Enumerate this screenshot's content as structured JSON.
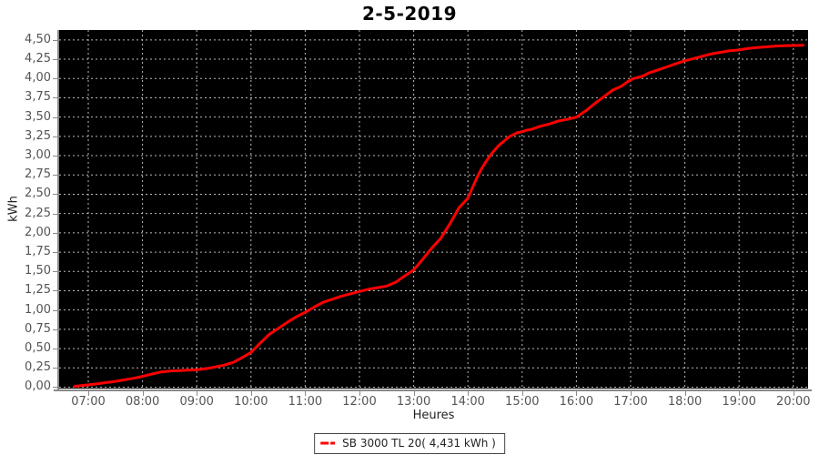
{
  "title": "2-5-2019",
  "colors": {
    "page_bg": "#ffffff",
    "plot_bg": "#000000",
    "grid_line": "#b9b9b9",
    "series_line": "#ff0000",
    "tick_label": "#555555",
    "axis_title": "#222222",
    "title_text": "#000000",
    "axis_line": "#8a8a8a",
    "legend_border": "#444444"
  },
  "chart_data": {
    "type": "line",
    "title": "2-5-2019",
    "xlabel": "Heures",
    "ylabel": "kWh",
    "grid": true,
    "legend_position": "bottom",
    "xlim": [
      6.463,
      20.272
    ],
    "ylim": [
      -0.018,
      4.628
    ],
    "x_ticks": [
      {
        "value": 7,
        "label": "07:00"
      },
      {
        "value": 8,
        "label": "08:00"
      },
      {
        "value": 9,
        "label": "09:00"
      },
      {
        "value": 10,
        "label": "10:00"
      },
      {
        "value": 11,
        "label": "11:00"
      },
      {
        "value": 12,
        "label": "12:00"
      },
      {
        "value": 13,
        "label": "13:00"
      },
      {
        "value": 14,
        "label": "14:00"
      },
      {
        "value": 15,
        "label": "15:00"
      },
      {
        "value": 16,
        "label": "16:00"
      },
      {
        "value": 17,
        "label": "17:00"
      },
      {
        "value": 18,
        "label": "18:00"
      },
      {
        "value": 19,
        "label": "19:00"
      },
      {
        "value": 20,
        "label": "20:00"
      }
    ],
    "y_ticks": [
      {
        "value": 0.0,
        "label": "0,00"
      },
      {
        "value": 0.25,
        "label": "0,25"
      },
      {
        "value": 0.5,
        "label": "0,50"
      },
      {
        "value": 0.75,
        "label": "0,75"
      },
      {
        "value": 1.0,
        "label": "1,00"
      },
      {
        "value": 1.25,
        "label": "1,25"
      },
      {
        "value": 1.5,
        "label": "1,50"
      },
      {
        "value": 1.75,
        "label": "1,75"
      },
      {
        "value": 2.0,
        "label": "2,00"
      },
      {
        "value": 2.25,
        "label": "2,25"
      },
      {
        "value": 2.5,
        "label": "2,50"
      },
      {
        "value": 2.75,
        "label": "2,75"
      },
      {
        "value": 3.0,
        "label": "3,00"
      },
      {
        "value": 3.25,
        "label": "3,25"
      },
      {
        "value": 3.5,
        "label": "3,50"
      },
      {
        "value": 3.75,
        "label": "3,75"
      },
      {
        "value": 4.0,
        "label": "4,00"
      },
      {
        "value": 4.25,
        "label": "4,25"
      },
      {
        "value": 4.5,
        "label": "4,50"
      }
    ],
    "legend": {
      "entries": [
        {
          "label": "SB 3000 TL 20( 4,431 kWh )",
          "color": "#ff0000",
          "marker": "dashed-line"
        }
      ]
    },
    "series": [
      {
        "name": "SB 3000 TL 20",
        "total_label": "4,431 kWh",
        "color": "#ff0000",
        "points": [
          [
            6.75,
            0.01
          ],
          [
            6.87,
            0.02
          ],
          [
            7.0,
            0.03
          ],
          [
            7.17,
            0.045
          ],
          [
            7.33,
            0.06
          ],
          [
            7.5,
            0.075
          ],
          [
            7.67,
            0.095
          ],
          [
            7.83,
            0.115
          ],
          [
            8.0,
            0.14
          ],
          [
            8.17,
            0.17
          ],
          [
            8.33,
            0.195
          ],
          [
            8.5,
            0.21
          ],
          [
            8.67,
            0.215
          ],
          [
            8.83,
            0.22
          ],
          [
            9.0,
            0.225
          ],
          [
            9.17,
            0.24
          ],
          [
            9.33,
            0.26
          ],
          [
            9.5,
            0.285
          ],
          [
            9.67,
            0.32
          ],
          [
            9.83,
            0.38
          ],
          [
            10.0,
            0.45
          ],
          [
            10.17,
            0.57
          ],
          [
            10.33,
            0.68
          ],
          [
            10.5,
            0.76
          ],
          [
            10.67,
            0.84
          ],
          [
            10.83,
            0.91
          ],
          [
            11.0,
            0.97
          ],
          [
            11.17,
            1.04
          ],
          [
            11.33,
            1.1
          ],
          [
            11.5,
            1.14
          ],
          [
            11.67,
            1.18
          ],
          [
            11.83,
            1.21
          ],
          [
            12.0,
            1.24
          ],
          [
            12.17,
            1.27
          ],
          [
            12.33,
            1.29
          ],
          [
            12.5,
            1.31
          ],
          [
            12.67,
            1.36
          ],
          [
            12.83,
            1.44
          ],
          [
            13.0,
            1.52
          ],
          [
            13.17,
            1.66
          ],
          [
            13.33,
            1.8
          ],
          [
            13.5,
            1.93
          ],
          [
            13.67,
            2.12
          ],
          [
            13.83,
            2.32
          ],
          [
            14.0,
            2.45
          ],
          [
            14.08,
            2.58
          ],
          [
            14.17,
            2.72
          ],
          [
            14.25,
            2.83
          ],
          [
            14.33,
            2.92
          ],
          [
            14.42,
            3.01
          ],
          [
            14.5,
            3.08
          ],
          [
            14.58,
            3.14
          ],
          [
            14.67,
            3.19
          ],
          [
            14.75,
            3.24
          ],
          [
            14.83,
            3.27
          ],
          [
            14.92,
            3.3
          ],
          [
            15.0,
            3.31
          ],
          [
            15.08,
            3.33
          ],
          [
            15.17,
            3.34
          ],
          [
            15.33,
            3.38
          ],
          [
            15.5,
            3.41
          ],
          [
            15.67,
            3.45
          ],
          [
            15.83,
            3.47
          ],
          [
            16.0,
            3.5
          ],
          [
            16.17,
            3.58
          ],
          [
            16.33,
            3.67
          ],
          [
            16.5,
            3.76
          ],
          [
            16.67,
            3.85
          ],
          [
            16.83,
            3.9
          ],
          [
            16.95,
            3.96
          ],
          [
            17.05,
            4.0
          ],
          [
            17.17,
            4.02
          ],
          [
            17.25,
            4.04
          ],
          [
            17.33,
            4.07
          ],
          [
            17.5,
            4.11
          ],
          [
            17.67,
            4.15
          ],
          [
            17.83,
            4.19
          ],
          [
            18.0,
            4.23
          ],
          [
            18.17,
            4.26
          ],
          [
            18.33,
            4.29
          ],
          [
            18.5,
            4.32
          ],
          [
            18.67,
            4.34
          ],
          [
            18.83,
            4.36
          ],
          [
            19.0,
            4.37
          ],
          [
            19.17,
            4.39
          ],
          [
            19.33,
            4.4
          ],
          [
            19.5,
            4.41
          ],
          [
            19.67,
            4.42
          ],
          [
            19.83,
            4.425
          ],
          [
            20.0,
            4.428
          ],
          [
            20.18,
            4.431
          ]
        ]
      }
    ]
  }
}
